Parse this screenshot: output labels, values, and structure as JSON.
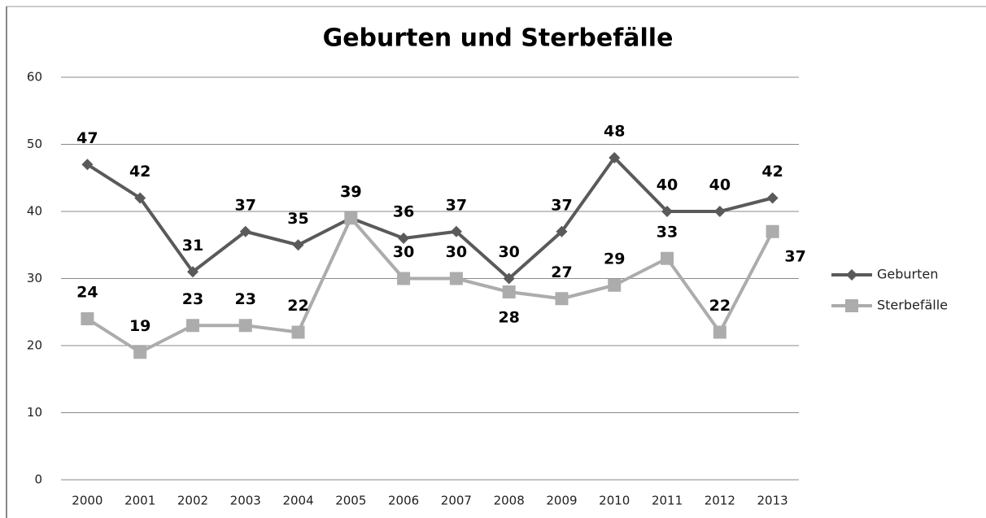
{
  "chart_data": {
    "type": "line",
    "title": "Geburten und Sterbefälle",
    "categories": [
      "2000",
      "2001",
      "2002",
      "2003",
      "2004",
      "2005",
      "2006",
      "2007",
      "2008",
      "2009",
      "2010",
      "2011",
      "2012",
      "2013"
    ],
    "series": [
      {
        "name": "Geburten",
        "color": "#5a5a5a",
        "marker": "diamond",
        "values": [
          47,
          42,
          31,
          37,
          35,
          39,
          36,
          37,
          30,
          37,
          48,
          40,
          40,
          42
        ]
      },
      {
        "name": "Sterbefälle",
        "color": "#acacac",
        "marker": "square",
        "values": [
          24,
          19,
          23,
          23,
          22,
          39,
          30,
          30,
          28,
          27,
          29,
          33,
          22,
          37
        ]
      }
    ],
    "ylim": [
      0,
      60
    ],
    "yticks": [
      0,
      10,
      20,
      30,
      40,
      50,
      60
    ],
    "grid": true,
    "legend": "right",
    "data_labels": true
  }
}
